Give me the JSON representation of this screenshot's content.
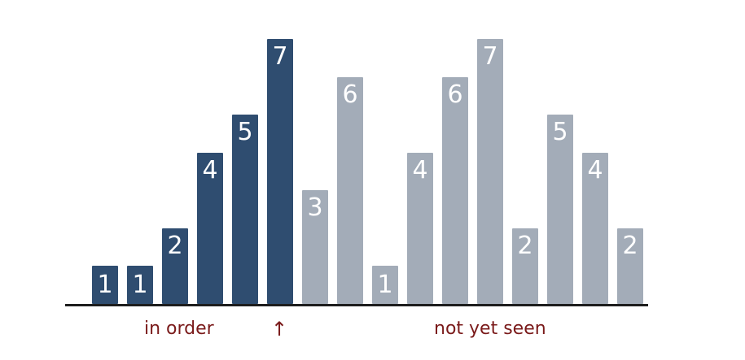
{
  "colors": {
    "sorted_bar": "#2f4d70",
    "unsorted_bar": "#a3acb8",
    "bar_text": "#ffffff",
    "caption_text": "#7a1a1a",
    "baseline": "#1d1d1d"
  },
  "bars": [
    {
      "value": 1,
      "label": "1",
      "state": "sorted"
    },
    {
      "value": 1,
      "label": "1",
      "state": "sorted"
    },
    {
      "value": 2,
      "label": "2",
      "state": "sorted"
    },
    {
      "value": 4,
      "label": "4",
      "state": "sorted"
    },
    {
      "value": 5,
      "label": "5",
      "state": "sorted"
    },
    {
      "value": 7,
      "label": "7",
      "state": "sorted"
    },
    {
      "value": 3,
      "label": "3",
      "state": "unsorted"
    },
    {
      "value": 6,
      "label": "6",
      "state": "unsorted"
    },
    {
      "value": 1,
      "label": "1",
      "state": "unsorted"
    },
    {
      "value": 4,
      "label": "4",
      "state": "unsorted"
    },
    {
      "value": 6,
      "label": "6",
      "state": "unsorted"
    },
    {
      "value": 7,
      "label": "7",
      "state": "unsorted"
    },
    {
      "value": 2,
      "label": "2",
      "state": "unsorted"
    },
    {
      "value": 5,
      "label": "5",
      "state": "unsorted"
    },
    {
      "value": 4,
      "label": "4",
      "state": "unsorted"
    },
    {
      "value": 2,
      "label": "2",
      "state": "unsorted"
    }
  ],
  "captions": {
    "in_order": "in order",
    "pointer": "↑",
    "not_yet_seen": "not yet seen"
  }
}
